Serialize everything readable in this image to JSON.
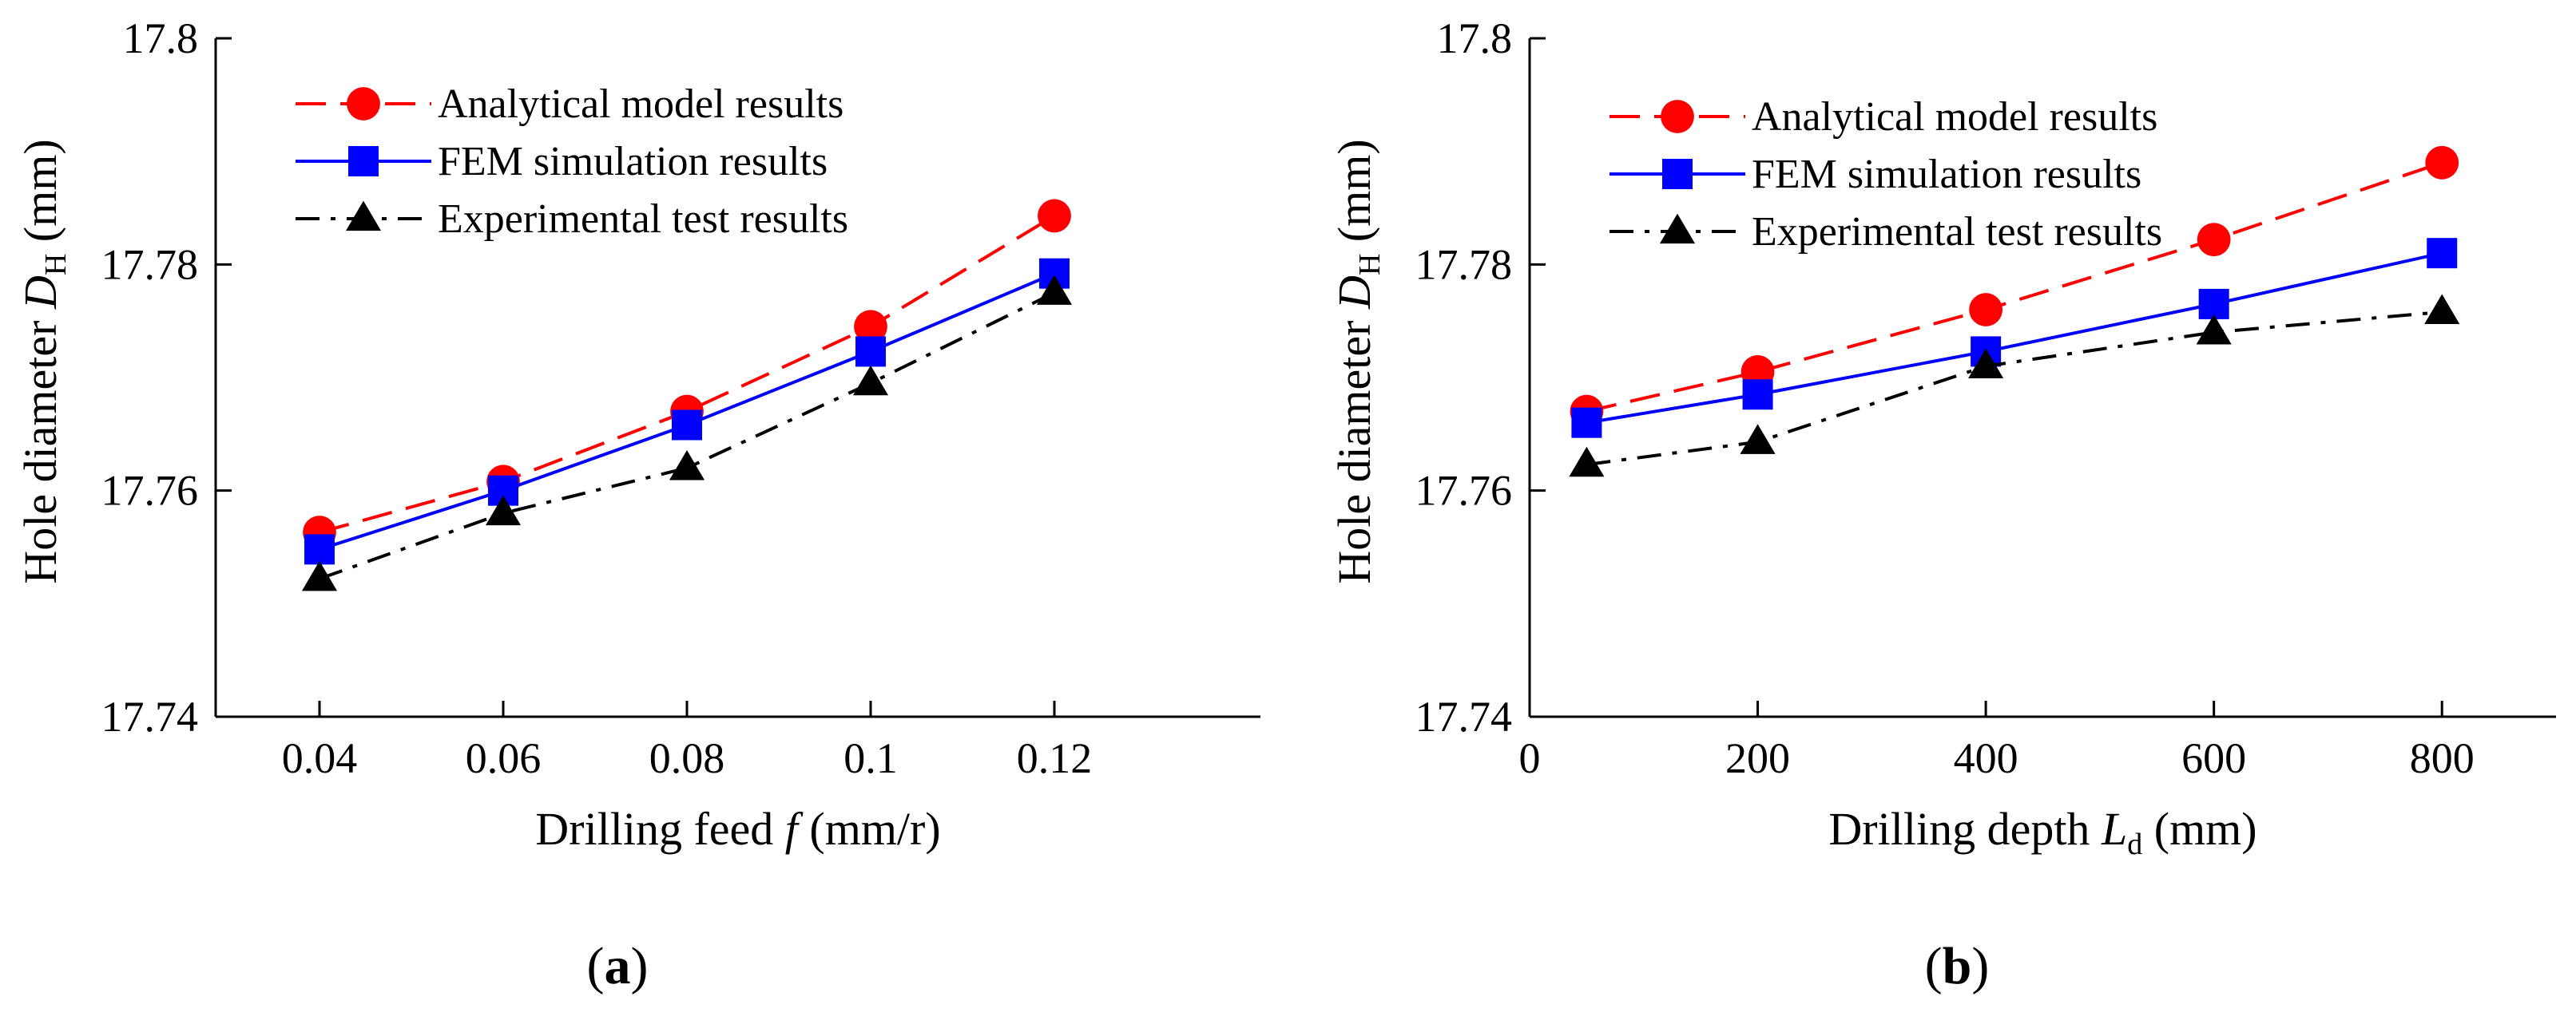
{
  "chart_data": [
    {
      "type": "line",
      "panel_label": "a",
      "xlabel": {
        "pre": "Drilling feed ",
        "var": "f",
        "sub": "",
        "post": " (mm/r)"
      },
      "ylabel": {
        "pre": "Hole diameter ",
        "var": "D",
        "sub": "H",
        "post": " (mm)"
      },
      "x_is_categorical": true,
      "categories": [
        "0.04",
        "0.06",
        "0.08",
        "0.1",
        "0.12"
      ],
      "x_ticks": [
        "0.04",
        "0.06",
        "0.08",
        "0.1",
        "0.12"
      ],
      "ylim": [
        17.74,
        17.8
      ],
      "y_ticks": [
        "17.74",
        "17.76",
        "17.78",
        "17.8"
      ],
      "legend_position": "top-left",
      "series": [
        {
          "name": "Analytical model results",
          "color": "#ff0000",
          "marker": "circle",
          "dash": "dashed",
          "values": [
            17.7563,
            17.7608,
            17.767,
            17.7745,
            17.7843
          ]
        },
        {
          "name": "FEM simulation results",
          "color": "#0000ff",
          "marker": "square",
          "dash": "solid",
          "values": [
            17.7548,
            17.76,
            17.7658,
            17.7723,
            17.7792
          ]
        },
        {
          "name": "Experimental test results",
          "color": "#000000",
          "marker": "triangle",
          "dash": "dashdot",
          "values": [
            17.7522,
            17.758,
            17.762,
            17.7695,
            17.7775
          ]
        }
      ]
    },
    {
      "type": "line",
      "panel_label": "b",
      "xlabel": {
        "pre": "Drilling depth ",
        "var": "L",
        "sub": "d",
        "post": " (mm)"
      },
      "ylabel": {
        "pre": "Hole diameter ",
        "var": "D",
        "sub": "H",
        "post": " (mm)"
      },
      "x_is_categorical": false,
      "x": [
        50,
        200,
        400,
        600,
        800
      ],
      "xlim": [
        0,
        900
      ],
      "x_ticks": [
        "0",
        "200",
        "400",
        "600",
        "800"
      ],
      "ylim": [
        17.74,
        17.8
      ],
      "y_ticks": [
        "17.74",
        "17.76",
        "17.78",
        "17.8"
      ],
      "legend_position": "top-left",
      "series": [
        {
          "name": "Analytical model results",
          "color": "#ff0000",
          "marker": "circle",
          "dash": "dashed",
          "values": [
            17.767,
            17.7705,
            17.776,
            17.7822,
            17.789
          ]
        },
        {
          "name": "FEM simulation results",
          "color": "#0000ff",
          "marker": "square",
          "dash": "solid",
          "values": [
            17.766,
            17.7685,
            17.7723,
            17.7765,
            17.781
          ]
        },
        {
          "name": "Experimental test results",
          "color": "#000000",
          "marker": "triangle",
          "dash": "dashdot",
          "values": [
            17.7623,
            17.7643,
            17.771,
            17.774,
            17.7758
          ]
        }
      ]
    }
  ]
}
